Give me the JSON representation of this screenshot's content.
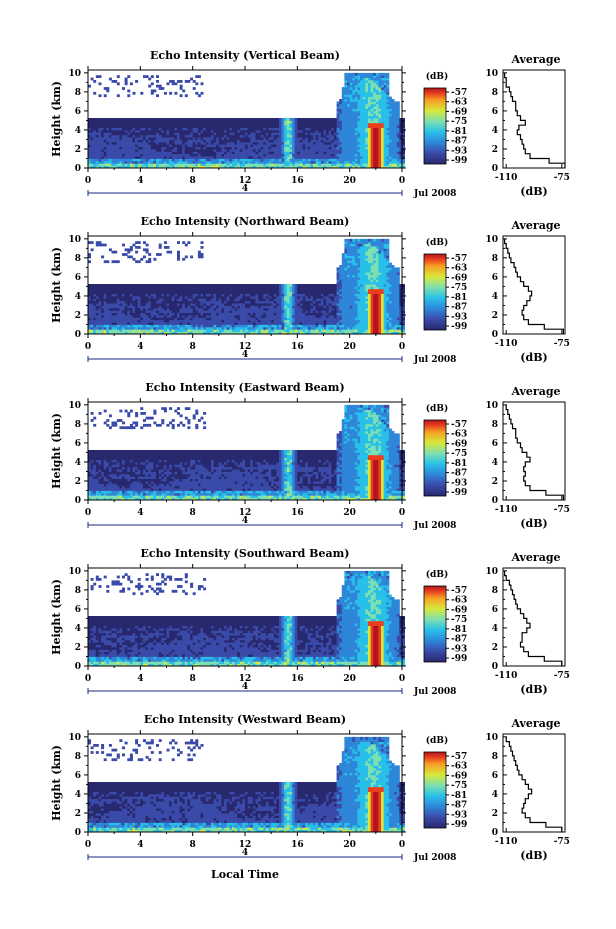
{
  "figure": {
    "xlabel": "Local Time",
    "date_label": "Jul 2008",
    "day_marker": "4",
    "colorbar_unit": "(dB)",
    "colorbar_ticks": [
      "-57",
      "-63",
      "-69",
      "-75",
      "-81",
      "-87",
      "-93",
      "-99"
    ],
    "colors": [
      "#28286e",
      "#3a4aa8",
      "#2f86d8",
      "#28c0e8",
      "#7ee0b0",
      "#d8e83a",
      "#f6a024",
      "#e8401e",
      "#b4141e"
    ]
  },
  "chart_data": [
    {
      "type": "heatmap",
      "title": "Echo Intensity (Vertical Beam)",
      "ylabel": "Height (km)",
      "x_ticks": [
        "0",
        "4",
        "8",
        "12",
        "16",
        "20",
        "0"
      ],
      "xlim": [
        0,
        24
      ],
      "y_ticks": [
        "0",
        "2",
        "4",
        "6",
        "8",
        "10"
      ],
      "ylim": [
        0,
        10.3
      ],
      "zlim": [
        -99,
        -57
      ],
      "zunit": "dB",
      "profile": {
        "title": "Average",
        "xlabel": "(dB)",
        "x_ticks": [
          "-110",
          "-75"
        ],
        "xlim": [
          -112,
          -73
        ],
        "ylim": [
          0,
          10.3
        ],
        "height_km": [
          0,
          0.5,
          1,
          1.5,
          2,
          2.5,
          3,
          3.5,
          4,
          4.5,
          5,
          5.5,
          6,
          6.5,
          7,
          7.5,
          8,
          8.5,
          9,
          9.5
        ],
        "db": [
          -73,
          -83,
          -95,
          -98,
          -99,
          -100,
          -101,
          -103,
          -102,
          -98,
          -101,
          -103,
          -104,
          -104,
          -106,
          -107,
          -108,
          -110,
          -110,
          -111
        ]
      }
    },
    {
      "type": "heatmap",
      "title": "Echo Intensity (Northward Beam)",
      "ylabel": "Height (km)",
      "x_ticks": [
        "0",
        "4",
        "8",
        "12",
        "16",
        "20",
        "0"
      ],
      "xlim": [
        0,
        24
      ],
      "y_ticks": [
        "0",
        "2",
        "4",
        "6",
        "8",
        "10"
      ],
      "ylim": [
        0,
        10.3
      ],
      "zlim": [
        -99,
        -57
      ],
      "zunit": "dB",
      "profile": {
        "title": "Average",
        "xlabel": "(dB)",
        "x_ticks": [
          "-110",
          "-75"
        ],
        "xlim": [
          -112,
          -73
        ],
        "ylim": [
          0,
          10.3
        ],
        "height_km": [
          0,
          0.5,
          1,
          1.5,
          2,
          2.5,
          3,
          3.5,
          4,
          4.5,
          5,
          5.5,
          6,
          6.5,
          7,
          7.5,
          8,
          8.5,
          9,
          9.5
        ],
        "db": [
          -74,
          -86,
          -96,
          -99,
          -100,
          -99,
          -97,
          -95,
          -94,
          -96,
          -99,
          -101,
          -103,
          -104,
          -105,
          -107,
          -108,
          -109,
          -110,
          -111
        ]
      }
    },
    {
      "type": "heatmap",
      "title": "Echo Intensity (Eastward Beam)",
      "ylabel": "Height (km)",
      "x_ticks": [
        "0",
        "4",
        "8",
        "12",
        "16",
        "20",
        "0"
      ],
      "xlim": [
        0,
        24
      ],
      "y_ticks": [
        "0",
        "2",
        "4",
        "6",
        "8",
        "10"
      ],
      "ylim": [
        0,
        10.3
      ],
      "zlim": [
        -99,
        -57
      ],
      "zunit": "dB",
      "profile": {
        "title": "Average",
        "xlabel": "(dB)",
        "x_ticks": [
          "-110",
          "-75"
        ],
        "xlim": [
          -112,
          -73
        ],
        "ylim": [
          0,
          10.3
        ],
        "height_km": [
          0,
          0.5,
          1,
          1.5,
          2,
          2.5,
          3,
          3.5,
          4,
          4.5,
          5,
          5.5,
          6,
          6.5,
          7,
          7.5,
          8,
          8.5,
          9,
          9.5
        ],
        "db": [
          -74,
          -85,
          -95,
          -98,
          -99,
          -98,
          -99,
          -98,
          -95,
          -97,
          -100,
          -101,
          -103,
          -104,
          -104,
          -106,
          -107,
          -108,
          -109,
          -110
        ]
      }
    },
    {
      "type": "heatmap",
      "title": "Echo Intensity (Southward Beam)",
      "ylabel": "Height (km)",
      "x_ticks": [
        "0",
        "4",
        "8",
        "12",
        "16",
        "20",
        "0"
      ],
      "xlim": [
        0,
        24
      ],
      "y_ticks": [
        "0",
        "2",
        "4",
        "6",
        "8",
        "10"
      ],
      "ylim": [
        0,
        10.3
      ],
      "zlim": [
        -99,
        -57
      ],
      "zunit": "dB",
      "profile": {
        "title": "Average",
        "xlabel": "(dB)",
        "x_ticks": [
          "-110",
          "-75"
        ],
        "xlim": [
          -112,
          -73
        ],
        "ylim": [
          0,
          10.3
        ],
        "height_km": [
          0,
          0.5,
          1,
          1.5,
          2,
          2.5,
          3,
          3.5,
          4,
          4.5,
          5,
          5.5,
          6,
          6.5,
          7,
          7.5,
          8,
          8.5,
          9,
          9.5
        ],
        "db": [
          -75,
          -86,
          -96,
          -99,
          -101,
          -100,
          -100,
          -97,
          -95,
          -97,
          -99,
          -101,
          -103,
          -104,
          -105,
          -106,
          -107,
          -108,
          -110,
          -111
        ]
      }
    },
    {
      "type": "heatmap",
      "title": "Echo Intensity (Westward Beam)",
      "ylabel": "Height (km)",
      "x_ticks": [
        "0",
        "4",
        "8",
        "12",
        "16",
        "20",
        "0"
      ],
      "xlim": [
        0,
        24
      ],
      "y_ticks": [
        "0",
        "2",
        "4",
        "6",
        "8",
        "10"
      ],
      "ylim": [
        0,
        10.3
      ],
      "zlim": [
        -99,
        -57
      ],
      "zunit": "dB",
      "profile": {
        "title": "Average",
        "xlabel": "(dB)",
        "x_ticks": [
          "-110",
          "-75"
        ],
        "xlim": [
          -112,
          -73
        ],
        "ylim": [
          0,
          10.3
        ],
        "height_km": [
          0,
          0.5,
          1,
          1.5,
          2,
          2.5,
          3,
          3.5,
          4,
          4.5,
          5,
          5.5,
          6,
          6.5,
          7,
          7.5,
          8,
          8.5,
          9,
          9.5
        ],
        "db": [
          -75,
          -85,
          -95,
          -98,
          -100,
          -99,
          -98,
          -96,
          -94,
          -96,
          -98,
          -100,
          -102,
          -103,
          -104,
          -105,
          -106,
          -107,
          -108,
          -110
        ]
      }
    }
  ]
}
